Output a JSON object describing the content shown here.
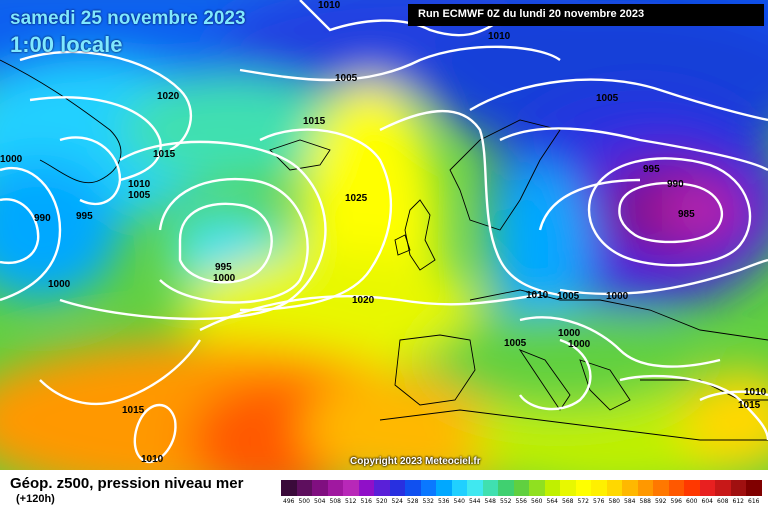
{
  "header": {
    "date": "samedi 25 novembre 2023",
    "time": "1:00 locale",
    "run": "Run ECMWF 0Z du lundi 20 novembre 2023"
  },
  "copyright": "Copyright 2023 Meteociel.fr",
  "footer": {
    "product": "Géop. z500, pression niveau mer",
    "lead": "(+120h)"
  },
  "legend": {
    "values": [
      "496",
      "500",
      "504",
      "508",
      "512",
      "516",
      "520",
      "524",
      "528",
      "532",
      "536",
      "540",
      "544",
      "548",
      "552",
      "556",
      "560",
      "564",
      "568",
      "572",
      "576",
      "580",
      "584",
      "588",
      "592",
      "596",
      "600",
      "604",
      "608",
      "612",
      "616"
    ],
    "colors": [
      "#3a0a3a",
      "#5e0f5e",
      "#800f80",
      "#a018a0",
      "#b828b8",
      "#9010c8",
      "#5a20d8",
      "#2830e0",
      "#1050f0",
      "#0a78ff",
      "#00a8ff",
      "#20d0ff",
      "#40e8f0",
      "#40e0b0",
      "#40d070",
      "#60d040",
      "#90e020",
      "#c0f000",
      "#e8f800",
      "#ffff00",
      "#fff000",
      "#ffd800",
      "#ffb800",
      "#ff9800",
      "#ff7800",
      "#ff5800",
      "#ff3800",
      "#e82020",
      "#c81818",
      "#a01010",
      "#800000"
    ]
  },
  "isobars": [
    {
      "label": "1010",
      "pos": "top"
    },
    {
      "label": "1005",
      "pos": "north-atlantic"
    },
    {
      "label": "1010",
      "pos": "top-center"
    },
    {
      "label": "1005",
      "pos": "scandinavia-north"
    },
    {
      "label": "1020",
      "pos": "greenland"
    },
    {
      "label": "1015",
      "pos": "iceland"
    },
    {
      "label": "1015",
      "pos": "greenland-south"
    },
    {
      "label": "1010",
      "pos": "greenland-south-2"
    },
    {
      "label": "1005",
      "pos": "greenland-south-3"
    },
    {
      "label": "1025",
      "pos": "atlantic-ridge"
    },
    {
      "label": "995",
      "pos": "baltic"
    },
    {
      "label": "990",
      "pos": "russia-low"
    },
    {
      "label": "985",
      "pos": "russia-center"
    },
    {
      "label": "1000",
      "pos": "west-edge"
    },
    {
      "label": "990",
      "pos": "labrador"
    },
    {
      "label": "995",
      "pos": "labrador-2"
    },
    {
      "label": "995",
      "pos": "atlantic-low"
    },
    {
      "label": "1000",
      "pos": "atlantic-low-2"
    },
    {
      "label": "1000",
      "pos": "newfoundland"
    },
    {
      "label": "1020",
      "pos": "biscay"
    },
    {
      "label": "1010",
      "pos": "germany"
    },
    {
      "label": "1005",
      "pos": "poland"
    },
    {
      "label": "1000",
      "pos": "ukraine"
    },
    {
      "label": "1005",
      "pos": "italy"
    },
    {
      "label": "1000",
      "pos": "balkans"
    },
    {
      "label": "1000",
      "pos": "balkans-2"
    },
    {
      "label": "1015",
      "pos": "azores"
    },
    {
      "label": "1010",
      "pos": "azores-low"
    },
    {
      "label": "1015",
      "pos": "east-med"
    },
    {
      "label": "1010",
      "pos": "east-edge"
    }
  ]
}
